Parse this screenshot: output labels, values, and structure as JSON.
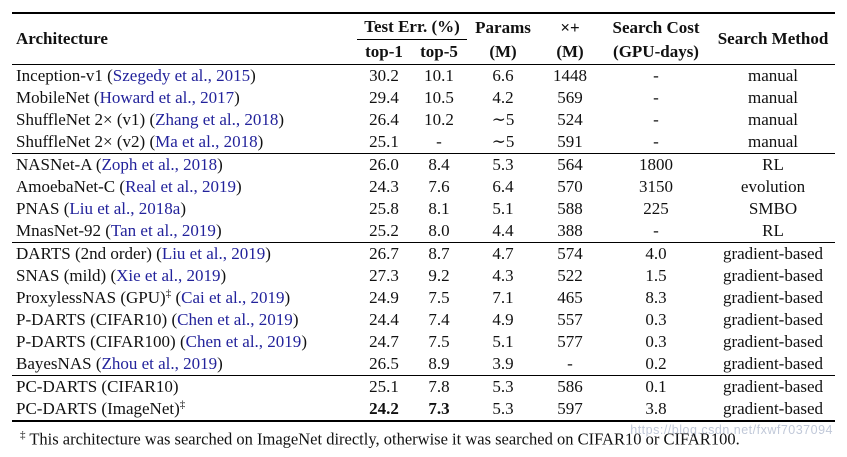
{
  "colors": {
    "text": "#111111",
    "citation_blue": "#22229b",
    "rule": "#000000",
    "watermark_gray": "#b6bfd2",
    "background": "#ffffff"
  },
  "table": {
    "headers": {
      "architecture": "Architecture",
      "test_err_group": "Test Err. (%)",
      "top1": "top-1",
      "top5": "top-5",
      "params_line1": "Params",
      "params_line2": "(M)",
      "madds_line1": "×+",
      "madds_line2": "(M)",
      "cost_line1": "Search Cost",
      "cost_line2": "(GPU-days)",
      "method": "Search Method"
    },
    "groups": [
      {
        "rows": [
          {
            "name": "Inception-v1",
            "sup": "",
            "cite": "Szegedy et al., 2015",
            "top1": "30.2",
            "top5": "10.1",
            "params": "6.6",
            "madds": "1448",
            "cost": "-",
            "method": "manual",
            "bold": []
          },
          {
            "name": "MobileNet",
            "sup": "",
            "cite": "Howard et al., 2017",
            "top1": "29.4",
            "top5": "10.5",
            "params": "4.2",
            "madds": "569",
            "cost": "-",
            "method": "manual",
            "bold": []
          },
          {
            "name": "ShuffleNet 2× (v1)",
            "sup": "",
            "cite": "Zhang et al., 2018",
            "top1": "26.4",
            "top5": "10.2",
            "params": "∼5",
            "madds": "524",
            "cost": "-",
            "method": "manual",
            "bold": []
          },
          {
            "name": "ShuffleNet 2× (v2)",
            "sup": "",
            "cite": "Ma et al., 2018",
            "top1": "25.1",
            "top5": "-",
            "params": "∼5",
            "madds": "591",
            "cost": "-",
            "method": "manual",
            "bold": []
          }
        ]
      },
      {
        "rows": [
          {
            "name": "NASNet-A",
            "sup": "",
            "cite": "Zoph et al., 2018",
            "top1": "26.0",
            "top5": "8.4",
            "params": "5.3",
            "madds": "564",
            "cost": "1800",
            "method": "RL",
            "bold": []
          },
          {
            "name": "AmoebaNet-C",
            "sup": "",
            "cite": "Real et al., 2019",
            "top1": "24.3",
            "top5": "7.6",
            "params": "6.4",
            "madds": "570",
            "cost": "3150",
            "method": "evolution",
            "bold": []
          },
          {
            "name": "PNAS",
            "sup": "",
            "cite": "Liu et al., 2018a",
            "top1": "25.8",
            "top5": "8.1",
            "params": "5.1",
            "madds": "588",
            "cost": "225",
            "method": "SMBO",
            "bold": []
          },
          {
            "name": "MnasNet-92",
            "sup": "",
            "cite": "Tan et al., 2019",
            "top1": "25.2",
            "top5": "8.0",
            "params": "4.4",
            "madds": "388",
            "cost": "-",
            "method": "RL",
            "bold": []
          }
        ]
      },
      {
        "rows": [
          {
            "name": "DARTS (2nd order)",
            "sup": "",
            "cite": "Liu et al., 2019",
            "top1": "26.7",
            "top5": "8.7",
            "params": "4.7",
            "madds": "574",
            "cost": "4.0",
            "method": "gradient-based",
            "bold": []
          },
          {
            "name": "SNAS (mild)",
            "sup": "",
            "cite": "Xie et al., 2019",
            "top1": "27.3",
            "top5": "9.2",
            "params": "4.3",
            "madds": "522",
            "cost": "1.5",
            "method": "gradient-based",
            "bold": []
          },
          {
            "name": "ProxylessNAS (GPU)",
            "sup": "‡",
            "cite": "Cai et al., 2019",
            "top1": "24.9",
            "top5": "7.5",
            "params": "7.1",
            "madds": "465",
            "cost": "8.3",
            "method": "gradient-based",
            "bold": []
          },
          {
            "name": "P-DARTS (CIFAR10)",
            "sup": "",
            "cite": "Chen et al., 2019",
            "top1": "24.4",
            "top5": "7.4",
            "params": "4.9",
            "madds": "557",
            "cost": "0.3",
            "method": "gradient-based",
            "bold": []
          },
          {
            "name": "P-DARTS (CIFAR100)",
            "sup": "",
            "cite": "Chen et al., 2019",
            "top1": "24.7",
            "top5": "7.5",
            "params": "5.1",
            "madds": "577",
            "cost": "0.3",
            "method": "gradient-based",
            "bold": []
          },
          {
            "name": "BayesNAS",
            "sup": "",
            "cite": "Zhou et al., 2019",
            "top1": "26.5",
            "top5": "8.9",
            "params": "3.9",
            "madds": "-",
            "cost": "0.2",
            "method": "gradient-based",
            "bold": []
          }
        ]
      },
      {
        "rows": [
          {
            "name": "PC-DARTS (CIFAR10)",
            "sup": "",
            "cite": null,
            "top1": "25.1",
            "top5": "7.8",
            "params": "5.3",
            "madds": "586",
            "cost": "0.1",
            "method": "gradient-based",
            "bold": []
          },
          {
            "name": "PC-DARTS (ImageNet)",
            "sup": "‡",
            "cite": null,
            "top1": "24.2",
            "top5": "7.3",
            "params": "5.3",
            "madds": "597",
            "cost": "3.8",
            "method": "gradient-based",
            "bold": [
              "top1",
              "top5"
            ]
          }
        ]
      }
    ]
  },
  "footnote": {
    "marker": "‡",
    "text": "This architecture was searched on ImageNet directly, otherwise it was searched on CIFAR10 or CIFAR100."
  },
  "watermark": "https://blog.csdn.net/fxwf7037094"
}
